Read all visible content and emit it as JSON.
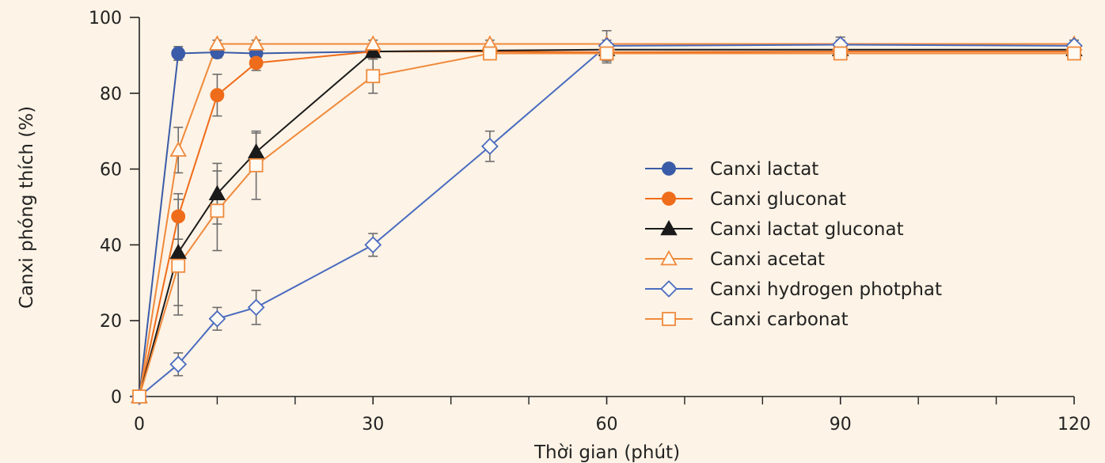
{
  "chart_data": {
    "type": "line",
    "xlabel": "Thời gian (phút)",
    "ylabel": "Canxi phóng thích (%)",
    "xlim": [
      0,
      120
    ],
    "ylim": [
      0,
      100
    ],
    "x_ticks": [
      0,
      30,
      60,
      90,
      120
    ],
    "x_minor_ticks": [
      10,
      20,
      40,
      50,
      70,
      80,
      100,
      110
    ],
    "y_ticks": [
      0,
      20,
      40,
      60,
      80,
      100
    ],
    "grid": false,
    "legend_position": "right-center",
    "series": [
      {
        "name": "Canxi lactat",
        "color": "#3a5ba8",
        "marker": "circle",
        "filled": true,
        "x": [
          0,
          5,
          10,
          15,
          30
        ],
        "y": [
          0,
          90.5,
          90.8,
          90.5,
          91
        ],
        "err": [
          0,
          1.8,
          1.5,
          1.5,
          1.0
        ]
      },
      {
        "name": "Canxi gluconat",
        "color": "#ef6c1a",
        "marker": "circle",
        "filled": true,
        "x": [
          0,
          5,
          10,
          15,
          30,
          45,
          60,
          90,
          120
        ],
        "y": [
          0,
          47.5,
          79.5,
          88,
          91,
          91,
          90.8,
          91,
          91
        ],
        "err": [
          0,
          6,
          5.5,
          2,
          1,
          1,
          1,
          1,
          1
        ]
      },
      {
        "name": "Canxi lactat gluconat",
        "color": "#1a1a1a",
        "marker": "triangle",
        "filled": true,
        "x": [
          0,
          5,
          10,
          15,
          30,
          60,
          90,
          120
        ],
        "y": [
          0,
          38,
          53.5,
          64.5,
          91,
          91.5,
          91.5,
          91.5
        ],
        "err": [
          0,
          14,
          8,
          5,
          2,
          1,
          1,
          1
        ]
      },
      {
        "name": "Canxi acetat",
        "color": "#ef8a3c",
        "marker": "triangle",
        "filled": false,
        "x": [
          0,
          5,
          10,
          15,
          30,
          45,
          60,
          90,
          120
        ],
        "y": [
          0,
          65,
          93,
          93,
          93,
          93,
          93,
          93,
          93
        ],
        "err": [
          0,
          6,
          1,
          1,
          1,
          1,
          1,
          1,
          1
        ]
      },
      {
        "name": "Canxi hydrogen photphat",
        "color": "#4a6cc0",
        "marker": "diamond",
        "filled": false,
        "x": [
          0,
          5,
          10,
          15,
          30,
          45,
          60,
          90,
          120
        ],
        "y": [
          0,
          8.5,
          20.5,
          23.5,
          40,
          66,
          92.5,
          92.8,
          92.5
        ],
        "err": [
          0,
          3,
          3,
          4.5,
          3,
          4,
          4,
          2,
          1.5
        ]
      },
      {
        "name": "Canxi carbonat",
        "color": "#ef8a3c",
        "marker": "square",
        "filled": false,
        "x": [
          0,
          5,
          10,
          15,
          30,
          45,
          60,
          90,
          120
        ],
        "y": [
          0,
          34.5,
          49,
          61,
          84.5,
          90.5,
          90.5,
          90.5,
          90.5
        ],
        "err": [
          0,
          13,
          10.5,
          9,
          4.5,
          1,
          2.5,
          1,
          1
        ]
      }
    ]
  }
}
